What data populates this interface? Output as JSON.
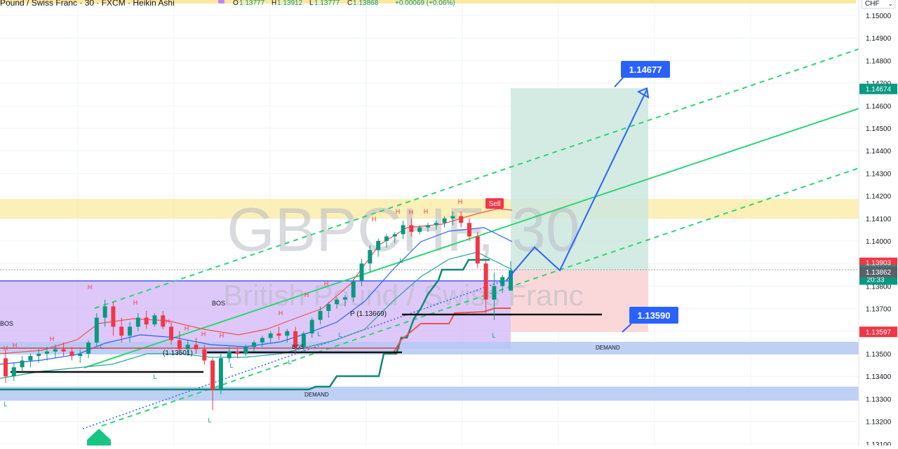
{
  "header": {
    "symbol_text": "Pound / Swiss Franc · 30 · FXCM · Heikin Ashi",
    "ohlc": [
      {
        "label": "O",
        "value": "1.13777"
      },
      {
        "label": "H",
        "value": "1.13912"
      },
      {
        "label": "L",
        "value": "1.13777"
      },
      {
        "label": "C",
        "value": "1.13868"
      }
    ],
    "change": "+0.00069 (+0.06%)",
    "currency": "CHF"
  },
  "watermark": {
    "ticker": "GBPCHF, 30",
    "name": "British Pound / Swiss Franc"
  },
  "price_axis": {
    "ticks": [
      "1.15000",
      "1.14900",
      "1.14800",
      "1.14700",
      "1.14600",
      "1.14500",
      "1.14400",
      "1.14300",
      "1.14200",
      "1.14100",
      "1.14000",
      "1.13900",
      "1.13800",
      "1.13700",
      "1.13600",
      "1.13500",
      "1.13400",
      "1.13300",
      "1.13200",
      "1.13100"
    ],
    "badges": [
      {
        "text": "1.14674",
        "color": "#089981",
        "price": 1.14674
      },
      {
        "text": "1.13903",
        "color": "#f23645",
        "price": 1.13903
      },
      {
        "text": "1.13868",
        "color": "#089981",
        "price": 1.13868,
        "countdown": "20:33"
      },
      {
        "text": "1.13862",
        "color": "#5d606b",
        "price": 1.13862
      },
      {
        "text": "1.13597",
        "color": "#f23645",
        "price": 1.13597
      }
    ]
  },
  "annotations": {
    "target_callout": "1.14677",
    "stop_callout": "1.13590",
    "sell_tag": "Sell",
    "pivot_label": "P (1.13669)",
    "pivot_label_left": "(1.13501)",
    "bos_labels": [
      "BOS",
      "BOS",
      "BOS"
    ],
    "demand_labels": [
      "DEMAND",
      "DEMAND"
    ],
    "high_marker": "H",
    "low_marker": "L"
  },
  "colors": {
    "up": "#089981",
    "down": "#f23645",
    "supply_zone": "#fbe9a0",
    "demand_zone": "#b4c8f5",
    "range_box": "#c9a8f5",
    "target_box": "#cde8df",
    "stop_box": "#f9d4d6",
    "channel": "#2ed573",
    "projection": "#2962ff"
  },
  "chart_data": {
    "type": "candlestick",
    "style": "Heikin Ashi",
    "timeframe": "30",
    "ylim": [
      1.131,
      1.1505
    ],
    "grid": true,
    "series": [
      {
        "name": "GBPCHF",
        "ohlc": [
          [
            1.1348,
            1.1352,
            1.1337,
            1.134
          ],
          [
            1.134,
            1.1346,
            1.1338,
            1.1344
          ],
          [
            1.1344,
            1.1349,
            1.1342,
            1.1347
          ],
          [
            1.1347,
            1.135,
            1.1344,
            1.1349
          ],
          [
            1.1349,
            1.1352,
            1.1346,
            1.135
          ],
          [
            1.135,
            1.1353,
            1.1347,
            1.1351
          ],
          [
            1.1351,
            1.1354,
            1.1348,
            1.1352
          ],
          [
            1.1352,
            1.1355,
            1.1349,
            1.1351
          ],
          [
            1.1351,
            1.1353,
            1.1347,
            1.1349
          ],
          [
            1.1349,
            1.1352,
            1.1346,
            1.135
          ],
          [
            1.135,
            1.1356,
            1.1348,
            1.1355
          ],
          [
            1.1355,
            1.1368,
            1.1353,
            1.1366
          ],
          [
            1.1366,
            1.1374,
            1.1362,
            1.1371
          ],
          [
            1.1371,
            1.1373,
            1.1358,
            1.1362
          ],
          [
            1.1362,
            1.1366,
            1.1355,
            1.1358
          ],
          [
            1.1358,
            1.1364,
            1.1355,
            1.1362
          ],
          [
            1.1362,
            1.1368,
            1.136,
            1.1366
          ],
          [
            1.1366,
            1.1369,
            1.1361,
            1.1363
          ],
          [
            1.1363,
            1.1368,
            1.1362,
            1.1367
          ],
          [
            1.1367,
            1.1369,
            1.1361,
            1.1362
          ],
          [
            1.1362,
            1.1364,
            1.1354,
            1.1356
          ],
          [
            1.1356,
            1.136,
            1.135,
            1.1352
          ],
          [
            1.1352,
            1.1356,
            1.1349,
            1.1354
          ],
          [
            1.1354,
            1.1357,
            1.135,
            1.1352
          ],
          [
            1.1352,
            1.1354,
            1.1345,
            1.1347
          ],
          [
            1.1347,
            1.1348,
            1.1325,
            1.1334
          ],
          [
            1.1334,
            1.135,
            1.1332,
            1.1348
          ],
          [
            1.1348,
            1.1353,
            1.1346,
            1.1351
          ],
          [
            1.1351,
            1.1353,
            1.1348,
            1.135
          ],
          [
            1.135,
            1.1354,
            1.1349,
            1.1353
          ],
          [
            1.1353,
            1.1356,
            1.1351,
            1.1355
          ],
          [
            1.1355,
            1.1358,
            1.1353,
            1.1357
          ],
          [
            1.1357,
            1.136,
            1.1355,
            1.1359
          ],
          [
            1.1359,
            1.1362,
            1.1356,
            1.1358
          ],
          [
            1.1358,
            1.1361,
            1.1355,
            1.136
          ],
          [
            1.136,
            1.1362,
            1.135,
            1.1353
          ],
          [
            1.1353,
            1.136,
            1.1351,
            1.1359
          ],
          [
            1.1359,
            1.1366,
            1.1357,
            1.1365
          ],
          [
            1.1365,
            1.1371,
            1.1363,
            1.1369
          ],
          [
            1.1369,
            1.1373,
            1.1366,
            1.1372
          ],
          [
            1.1372,
            1.1375,
            1.137,
            1.1374
          ],
          [
            1.1374,
            1.1376,
            1.1371,
            1.1375
          ],
          [
            1.1375,
            1.1383,
            1.1373,
            1.1382
          ],
          [
            1.1382,
            1.1392,
            1.138,
            1.139
          ],
          [
            1.139,
            1.1398,
            1.1386,
            1.1396
          ],
          [
            1.1396,
            1.1401,
            1.1393,
            1.14
          ],
          [
            1.14,
            1.1403,
            1.1397,
            1.1402
          ],
          [
            1.1402,
            1.1404,
            1.1399,
            1.1403
          ],
          [
            1.1403,
            1.1409,
            1.1401,
            1.1407
          ],
          [
            1.1407,
            1.141,
            1.1402,
            1.1404
          ],
          [
            1.1404,
            1.1407,
            1.1403,
            1.1406
          ],
          [
            1.1406,
            1.1408,
            1.1404,
            1.1407
          ],
          [
            1.1407,
            1.1409,
            1.1405,
            1.1408
          ],
          [
            1.1408,
            1.1411,
            1.1406,
            1.141
          ],
          [
            1.141,
            1.1413,
            1.1407,
            1.1411
          ],
          [
            1.1411,
            1.1413,
            1.1406,
            1.1408
          ],
          [
            1.1408,
            1.141,
            1.14,
            1.1402
          ],
          [
            1.1402,
            1.1404,
            1.1388,
            1.139
          ],
          [
            1.139,
            1.1392,
            1.1368,
            1.1374
          ],
          [
            1.1374,
            1.1386,
            1.1365,
            1.138
          ],
          [
            1.138,
            1.1385,
            1.1377,
            1.1384
          ],
          [
            1.1378,
            1.1391,
            1.1378,
            1.1387
          ]
        ]
      }
    ],
    "levels": {
      "pivot": 1.13669,
      "pivot_left": 1.13501,
      "target": 1.14677,
      "stop": 1.1359,
      "entry": 1.13868,
      "supply_zone": [
        1.141,
        1.1418
      ],
      "demand_zones": [
        [
          1.135,
          1.1355
        ],
        [
          1.1329,
          1.1335
        ]
      ]
    }
  }
}
